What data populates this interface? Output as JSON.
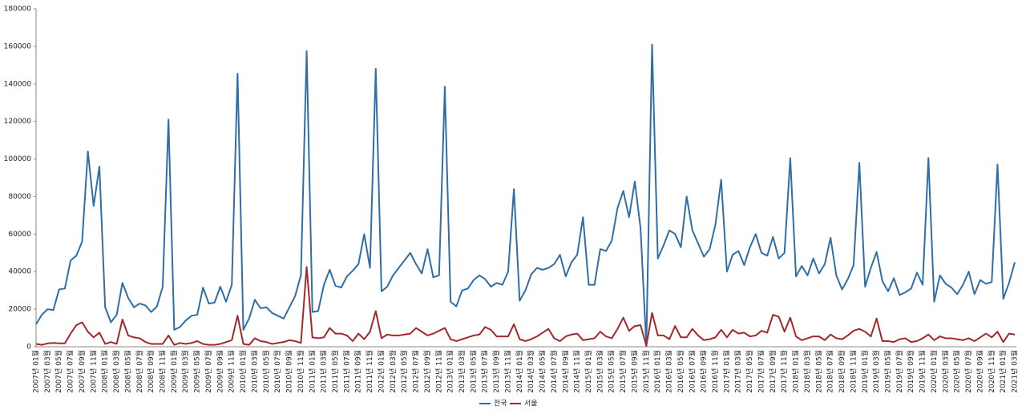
{
  "chart_data": {
    "type": "line",
    "categories": [
      "2007년 01월",
      null,
      "2007년 03월",
      null,
      "2007년 05월",
      null,
      "2007년 07월",
      null,
      "2007년 09월",
      null,
      "2007년 11월",
      null,
      "2008년 01월",
      null,
      "2008년 03월",
      null,
      "2008년 05월",
      null,
      "2008년 07월",
      null,
      "2008년 09월",
      null,
      "2008년 11월",
      null,
      "2009년 01월",
      null,
      "2009년 03월",
      null,
      "2009년 05월",
      null,
      "2009년 07월",
      null,
      "2009년 09월",
      null,
      "2009년 11월",
      null,
      "2010년 01월",
      null,
      "2010년 03월",
      null,
      "2010년 05월",
      null,
      "2010년 07월",
      null,
      "2010년 09월",
      null,
      "2010년 11월",
      null,
      "2011년 01월",
      null,
      "2011년 03월",
      null,
      "2011년 05월",
      null,
      "2011년 07월",
      null,
      "2011년 09월",
      null,
      "2011년 11월",
      null,
      "2012년 01월",
      null,
      "2012년 03월",
      null,
      "2012년 05월",
      null,
      "2012년 07월",
      null,
      "2012년 09월",
      null,
      "2012년 11월",
      null,
      "2013년 01월",
      null,
      "2013년 03월",
      null,
      "2013년 05월",
      null,
      "2013년 07월",
      null,
      "2013년 09월",
      null,
      "2013년 11월",
      null,
      "2014년 01월",
      null,
      "2014년 03월",
      null,
      "2014년 05월",
      null,
      "2014년 07월",
      null,
      "2014년 09월",
      null,
      "2014년 11월",
      null,
      "2015년 01월",
      null,
      "2015년 03월",
      null,
      "2015년 05월",
      null,
      "2015년 07월",
      null,
      "2015년 09월",
      null,
      "2015년 11월",
      null,
      "2016년 01월",
      null,
      "2016년 03월",
      null,
      "2016년 05월",
      null,
      "2016년 07월",
      null,
      "2016년 09월",
      null,
      "2016년 11월",
      null,
      "2017년 01월",
      null,
      "2017년 03월",
      null,
      "2017년 05월",
      null,
      "2017년 07월",
      null,
      "2017년 09월",
      null,
      "2017년 11월",
      null,
      "2018년 01월",
      null,
      "2018년 03월",
      null,
      "2018년 05월",
      null,
      "2018년 07월",
      null,
      "2018년 09월",
      null,
      "2018년 11월",
      null,
      "2019년 01월",
      null,
      "2019년 03월",
      null,
      "2019년 05월",
      null,
      "2019년 07월",
      null,
      "2019년 09월",
      null,
      "2019년 11월",
      null,
      "2020년 01월",
      null,
      "2020년 03월",
      null,
      "2020년 05월",
      null,
      "2020년 07월",
      null,
      "2020년 09월",
      null,
      "2020년 11월",
      null,
      "2021년 01월",
      null,
      "2021년 03월"
    ],
    "series": [
      {
        "name": "전국",
        "color": "#2f6ea6",
        "values": [
          12000,
          17000,
          20000,
          19500,
          30500,
          31000,
          46000,
          48500,
          56000,
          104000,
          75000,
          96000,
          21000,
          13000,
          17000,
          34000,
          26000,
          21000,
          23000,
          22000,
          18500,
          21500,
          32000,
          121000,
          9000,
          10500,
          14000,
          16500,
          17000,
          31500,
          23000,
          23500,
          32000,
          24000,
          33000,
          145500,
          9000,
          15000,
          25000,
          20500,
          21000,
          18000,
          16500,
          15000,
          21000,
          27000,
          38000,
          157500,
          18500,
          19000,
          33000,
          41000,
          32500,
          31500,
          37500,
          40500,
          44000,
          60000,
          42000,
          148000,
          29500,
          32000,
          38000,
          42000,
          46000,
          50000,
          44000,
          39000,
          52000,
          37000,
          38000,
          138500,
          24000,
          21500,
          30000,
          31000,
          35500,
          38000,
          36000,
          32000,
          34000,
          33000,
          40000,
          84000,
          24500,
          30000,
          38500,
          42000,
          41000,
          42000,
          44000,
          49000,
          37500,
          45000,
          49000,
          69000,
          33000,
          33000,
          52000,
          51000,
          56500,
          74000,
          83000,
          69000,
          88000,
          63000,
          500,
          161000,
          47000,
          54000,
          62000,
          60000,
          53000,
          80000,
          62000,
          55000,
          48000,
          52000,
          65000,
          89000,
          40000,
          49000,
          51000,
          43500,
          53000,
          60000,
          50000,
          48500,
          58500,
          47000,
          50000,
          100500,
          37500,
          43000,
          38000,
          47000,
          39000,
          44000,
          58000,
          38000,
          30500,
          36000,
          43500,
          98000,
          32000,
          42000,
          50500,
          35000,
          29500,
          36500,
          27500,
          29000,
          31000,
          39500,
          33000,
          100500,
          24000,
          38000,
          33500,
          31500,
          28000,
          33000,
          40000,
          28000,
          35500,
          33500,
          34500,
          97000,
          25500,
          34000,
          45000
        ]
      },
      {
        "name": "서울",
        "color": "#a3282b",
        "values": [
          1500,
          1000,
          1800,
          2000,
          1800,
          1800,
          7000,
          11500,
          13000,
          8000,
          5000,
          7500,
          1500,
          2500,
          1500,
          14500,
          6000,
          5000,
          4500,
          2500,
          1500,
          1500,
          1500,
          6000,
          1000,
          2000,
          1500,
          2000,
          3000,
          1500,
          1000,
          1000,
          1500,
          2500,
          3500,
          16500,
          1500,
          1000,
          4500,
          3000,
          2500,
          1500,
          2000,
          2500,
          3500,
          3000,
          2000,
          42500,
          5000,
          4500,
          5000,
          10000,
          7000,
          7000,
          6000,
          3000,
          7000,
          4000,
          8000,
          19000,
          4500,
          6500,
          6000,
          6000,
          6500,
          7000,
          10000,
          8000,
          6000,
          7000,
          8500,
          10000,
          4000,
          3000,
          4000,
          5000,
          6000,
          6500,
          10500,
          9000,
          5500,
          5500,
          5500,
          12000,
          4000,
          3000,
          4000,
          5500,
          7500,
          9500,
          4500,
          3000,
          5500,
          6500,
          7000,
          3500,
          4000,
          4500,
          8000,
          5500,
          4500,
          9500,
          15500,
          8500,
          11000,
          11500,
          500,
          18000,
          6000,
          6000,
          4000,
          11000,
          5000,
          5000,
          9500,
          6000,
          3500,
          4000,
          5000,
          9000,
          5000,
          9000,
          7000,
          7500,
          5500,
          6000,
          8500,
          7500,
          17000,
          16000,
          8000,
          15500,
          5500,
          3500,
          4500,
          5500,
          5500,
          3500,
          6500,
          4500,
          4000,
          6000,
          8500,
          9500,
          8000,
          5500,
          15000,
          3000,
          3000,
          2500,
          4000,
          4500,
          2500,
          3000,
          4500,
          6500,
          3500,
          5500,
          4500,
          4500,
          4000,
          3500,
          4500,
          3000,
          5000,
          7000,
          5000,
          8000,
          2500,
          7000,
          6500
        ]
      }
    ],
    "ylim": [
      0,
      180000
    ],
    "yticks": [
      0,
      20000,
      40000,
      60000,
      80000,
      100000,
      120000,
      140000,
      160000,
      180000
    ],
    "grid": false,
    "legend": "bottom"
  }
}
